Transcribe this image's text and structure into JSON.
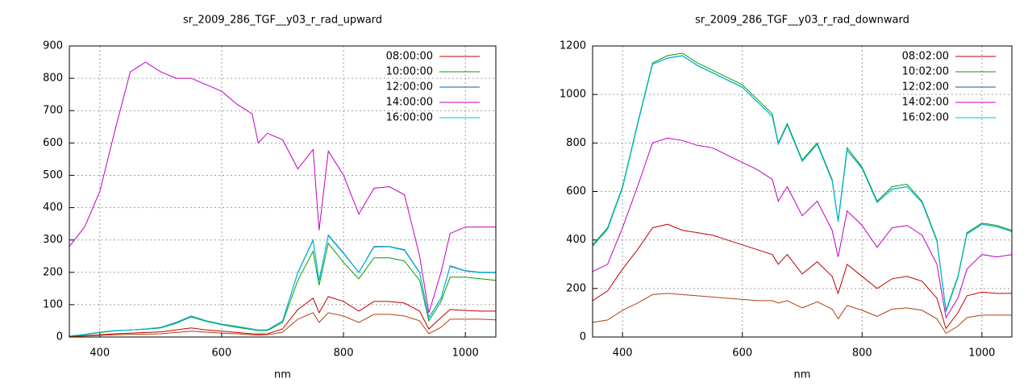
{
  "chart_data": [
    {
      "type": "line",
      "title": "sr_2009_286_TGF__y03_r_rad_upward",
      "x_label": "nm",
      "x": [
        350,
        375,
        400,
        425,
        450,
        475,
        500,
        525,
        550,
        575,
        600,
        625,
        650,
        660,
        675,
        700,
        725,
        750,
        760,
        775,
        800,
        825,
        850,
        875,
        900,
        925,
        940,
        960,
        975,
        1000,
        1025,
        1050
      ],
      "xlim": [
        350,
        1050
      ],
      "xticks": [
        400,
        600,
        800,
        1000
      ],
      "ylim": [
        0,
        900
      ],
      "yticks": [
        0,
        100,
        200,
        300,
        400,
        500,
        600,
        700,
        800,
        900
      ],
      "grid": true,
      "legend": "top-right",
      "series": [
        {
          "name": "08:00:00",
          "color": "#c00000",
          "values": [
            2,
            4,
            7,
            10,
            12,
            14,
            16,
            22,
            28,
            22,
            18,
            14,
            10,
            9,
            10,
            25,
            85,
            120,
            75,
            125,
            110,
            80,
            110,
            110,
            105,
            80,
            25,
            60,
            85,
            82,
            80,
            80
          ]
        },
        {
          "name": "10:00:00",
          "color": "#00a000",
          "values": [
            3,
            7,
            14,
            19,
            22,
            24,
            28,
            42,
            62,
            48,
            38,
            30,
            23,
            20,
            20,
            45,
            175,
            265,
            160,
            290,
            230,
            180,
            245,
            245,
            235,
            175,
            50,
            110,
            185,
            185,
            180,
            175
          ]
        },
        {
          "name": "12:00:00",
          "color": "#0060ad",
          "values": [
            3,
            8,
            15,
            20,
            22,
            25,
            30,
            45,
            65,
            50,
            40,
            33,
            25,
            22,
            22,
            50,
            200,
            300,
            175,
            315,
            260,
            200,
            280,
            280,
            270,
            200,
            60,
            120,
            220,
            205,
            200,
            200
          ]
        },
        {
          "name": "14:00:00",
          "color": "#c000c0",
          "values": [
            280,
            340,
            450,
            640,
            820,
            850,
            820,
            800,
            800,
            780,
            760,
            720,
            690,
            600,
            630,
            610,
            520,
            580,
            330,
            575,
            500,
            380,
            460,
            465,
            440,
            250,
            75,
            200,
            320,
            340,
            340,
            340
          ]
        },
        {
          "name": "16:00:00",
          "color": "#00c0e0",
          "values": [
            3,
            8,
            15,
            20,
            22,
            25,
            30,
            44,
            64,
            50,
            40,
            33,
            25,
            22,
            22,
            49,
            198,
            298,
            174,
            313,
            258,
            199,
            278,
            279,
            268,
            198,
            59,
            119,
            218,
            204,
            199,
            199
          ]
        },
        {
          "color": "#b04010",
          "values": [
            1,
            3,
            5,
            7,
            8,
            9,
            10,
            14,
            18,
            15,
            12,
            10,
            7,
            6,
            7,
            15,
            55,
            75,
            45,
            75,
            65,
            45,
            70,
            70,
            65,
            50,
            10,
            30,
            55,
            55,
            55,
            53
          ]
        }
      ]
    },
    {
      "type": "line",
      "title": "sr_2009_286_TGF__y03_r_rad_downward",
      "x_label": "nm",
      "x": [
        350,
        375,
        400,
        425,
        450,
        475,
        500,
        525,
        550,
        575,
        600,
        625,
        650,
        660,
        675,
        700,
        725,
        750,
        760,
        775,
        800,
        825,
        850,
        875,
        900,
        925,
        940,
        960,
        975,
        1000,
        1025,
        1050
      ],
      "xlim": [
        350,
        1050
      ],
      "xticks": [
        400,
        600,
        800,
        1000
      ],
      "ylim": [
        0,
        1200
      ],
      "yticks": [
        0,
        200,
        400,
        600,
        800,
        1000,
        1200
      ],
      "grid": true,
      "legend": "top-right",
      "series": [
        {
          "name": "08:02:00",
          "color": "#c00000",
          "values": [
            150,
            190,
            280,
            360,
            450,
            465,
            440,
            430,
            420,
            400,
            380,
            360,
            340,
            300,
            340,
            260,
            310,
            250,
            180,
            300,
            250,
            200,
            240,
            250,
            230,
            160,
            35,
            100,
            170,
            185,
            180,
            180
          ]
        },
        {
          "name": "10:02:00",
          "color": "#00a000",
          "values": [
            380,
            450,
            620,
            880,
            1130,
            1160,
            1170,
            1130,
            1100,
            1070,
            1040,
            980,
            920,
            800,
            880,
            730,
            800,
            650,
            480,
            780,
            700,
            560,
            620,
            630,
            560,
            400,
            110,
            250,
            430,
            470,
            460,
            440
          ]
        },
        {
          "name": "12:02:00",
          "color": "#0060ad",
          "values": [
            375,
            445,
            615,
            875,
            1125,
            1150,
            1160,
            1120,
            1090,
            1060,
            1030,
            970,
            910,
            795,
            875,
            725,
            795,
            645,
            475,
            770,
            695,
            555,
            610,
            620,
            555,
            395,
            105,
            245,
            425,
            465,
            455,
            435
          ]
        },
        {
          "name": "14:02:00",
          "color": "#c000c0",
          "values": [
            270,
            300,
            450,
            620,
            800,
            820,
            810,
            790,
            780,
            750,
            720,
            690,
            650,
            560,
            620,
            500,
            560,
            440,
            330,
            520,
            460,
            370,
            450,
            460,
            420,
            300,
            80,
            160,
            280,
            340,
            330,
            340
          ]
        },
        {
          "name": "16:02:00",
          "color": "#00c0e0",
          "values": [
            374,
            444,
            614,
            874,
            1124,
            1149,
            1159,
            1119,
            1089,
            1059,
            1029,
            969,
            909,
            794,
            874,
            724,
            794,
            644,
            474,
            769,
            694,
            554,
            609,
            619,
            554,
            394,
            104,
            244,
            424,
            464,
            454,
            434
          ]
        },
        {
          "color": "#b04010",
          "values": [
            60,
            70,
            110,
            140,
            175,
            180,
            175,
            170,
            165,
            160,
            155,
            150,
            150,
            140,
            150,
            120,
            145,
            115,
            75,
            130,
            110,
            85,
            115,
            120,
            110,
            75,
            15,
            45,
            80,
            90,
            90,
            90
          ]
        }
      ]
    }
  ]
}
